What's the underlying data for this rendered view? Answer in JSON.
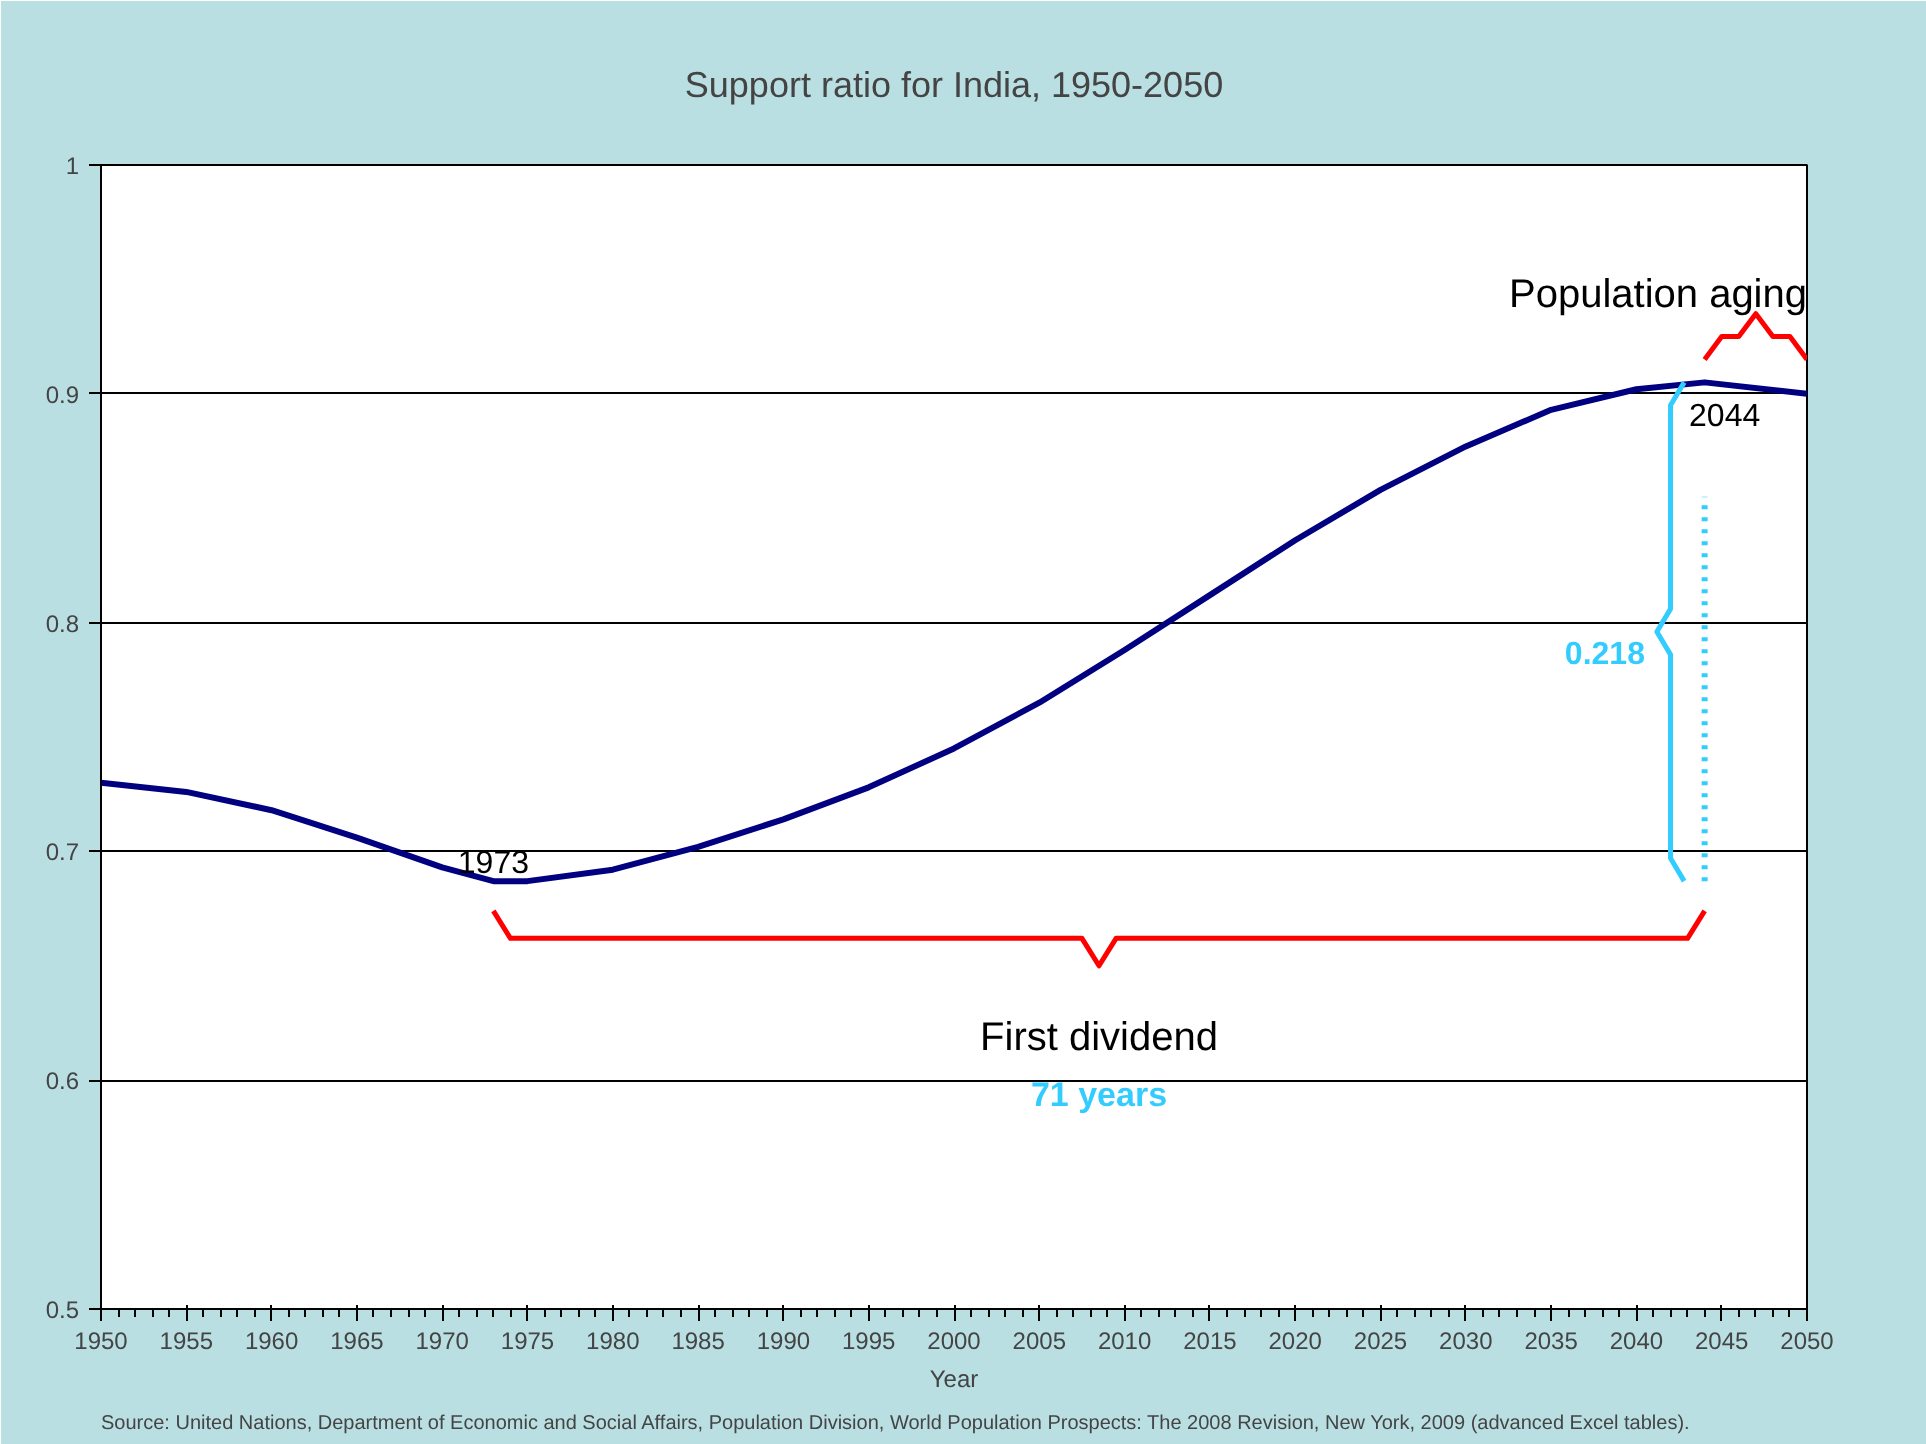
{
  "chart_data": {
    "type": "line",
    "title": "Support ratio for India, 1950-2050",
    "xlabel": "Year",
    "x": [
      1950,
      1955,
      1960,
      1965,
      1970,
      1973,
      1975,
      1980,
      1985,
      1990,
      1995,
      2000,
      2005,
      2010,
      2015,
      2020,
      2025,
      2030,
      2035,
      2040,
      2044,
      2050
    ],
    "series": [
      {
        "color": "#000080",
        "values": [
          0.73,
          0.726,
          0.718,
          0.706,
          0.693,
          0.687,
          0.687,
          0.692,
          0.702,
          0.714,
          0.728,
          0.745,
          0.765,
          0.788,
          0.812,
          0.836,
          0.858,
          0.877,
          0.893,
          0.902,
          0.905,
          0.9
        ]
      }
    ],
    "xlim": [
      1950,
      2050
    ],
    "xticks": [
      1950,
      1955,
      1960,
      1965,
      1970,
      1975,
      1980,
      1985,
      1990,
      1995,
      2000,
      2005,
      2010,
      2015,
      2020,
      2025,
      2030,
      2035,
      2040,
      2045,
      2050
    ],
    "ylim": [
      0.5,
      1
    ],
    "yticks": [
      0.5,
      0.6,
      0.7,
      0.8,
      0.9,
      1
    ],
    "grid": "y",
    "marker": "none",
    "ref_lines": [
      {
        "axis": "x",
        "value": 2044,
        "color": "#33ccff",
        "line_style": "dotted"
      }
    ],
    "line_style": "solid",
    "annotations": [
      {
        "text": "1973",
        "x": 1973,
        "y": 0.687
      },
      {
        "text": "2044",
        "x": 2044,
        "y": 0.905
      },
      "0.218",
      "First dividend",
      "71 years",
      "Population aging",
      "Source: United Nations, Department of Economic and Social Affairs, Population Division, World Population Prospects: The 2008 Revision, New York, 2009 (advanced Excel tables)."
    ]
  }
}
